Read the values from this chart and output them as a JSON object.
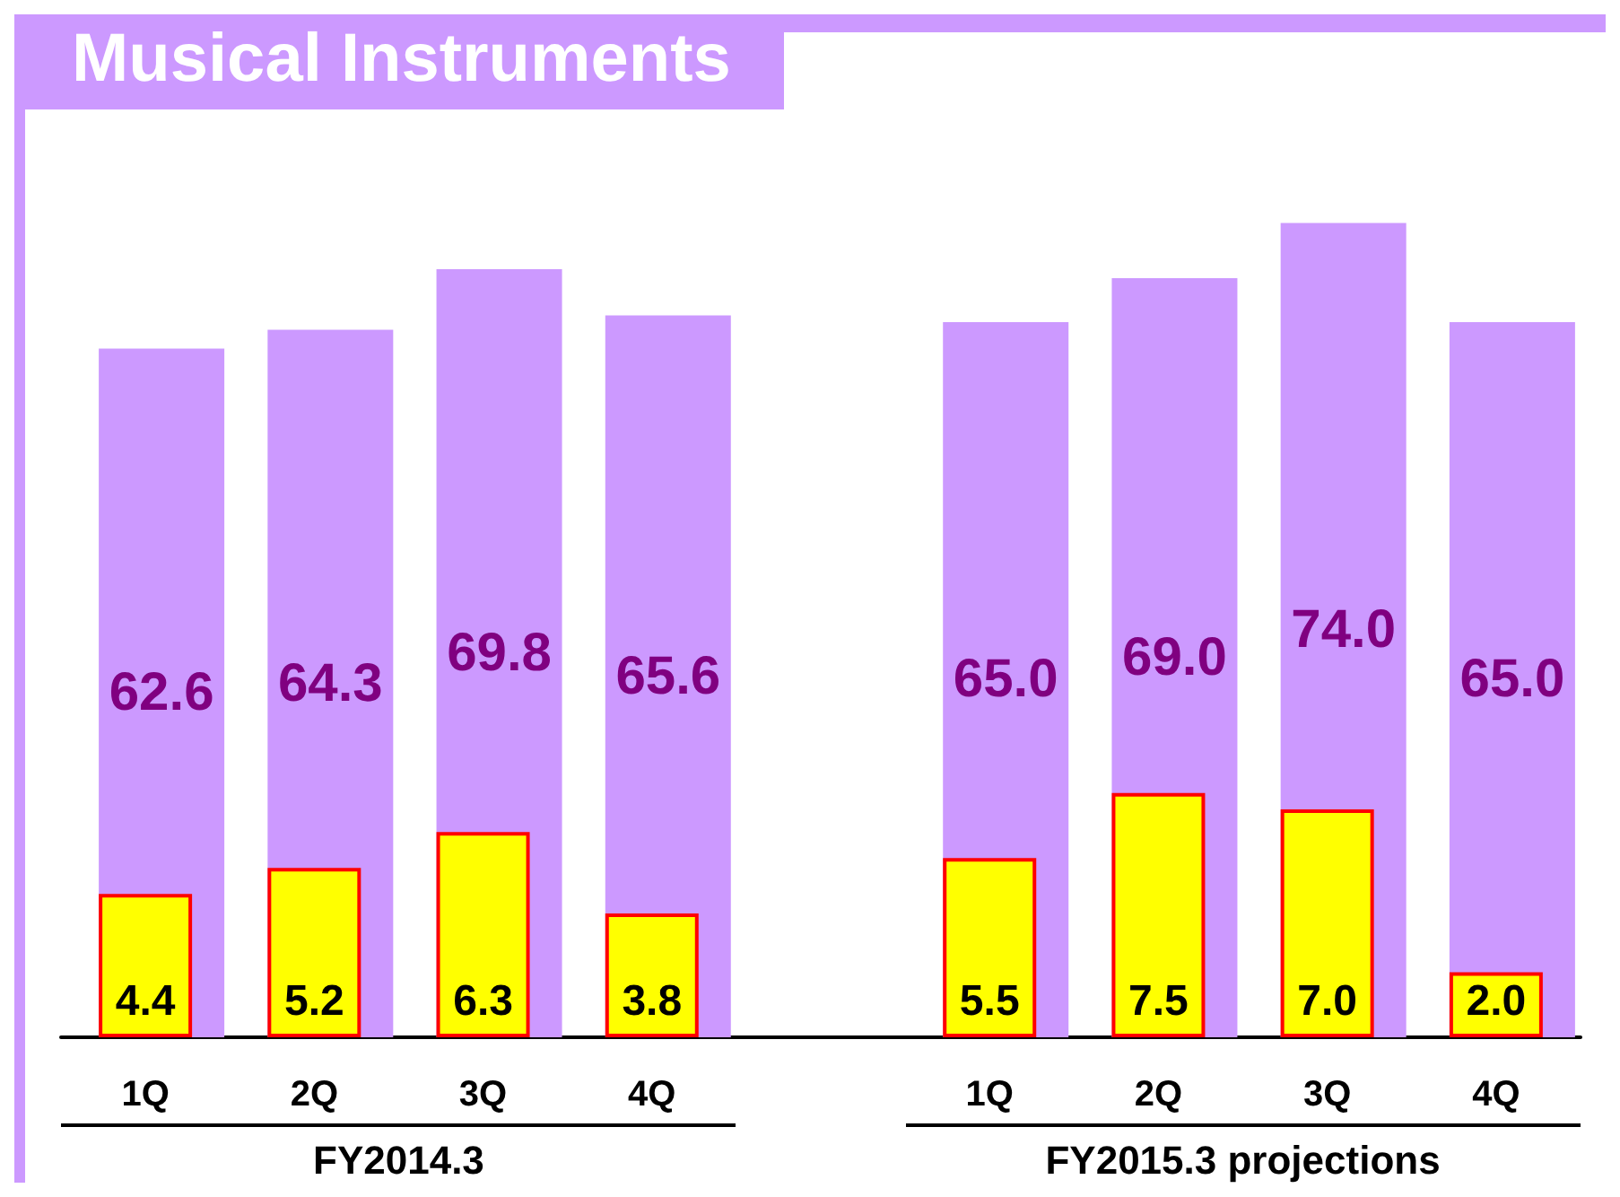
{
  "chart_data": {
    "type": "bar",
    "title": "Musical Instruments",
    "categories": [
      "1Q",
      "2Q",
      "3Q",
      "4Q",
      null,
      "1Q",
      "2Q",
      "3Q",
      "4Q"
    ],
    "series": [
      {
        "color": "#cc99ff",
        "values": [
          62.6,
          64.3,
          69.8,
          65.6,
          null,
          65.0,
          69.0,
          74.0,
          65.0
        ],
        "value_labels": [
          "62.6",
          "64.3",
          "69.8",
          "65.6",
          null,
          "65.0",
          "69.0",
          "74.0",
          "65.0"
        ]
      },
      {
        "color": "#ffff00",
        "axis": "y2",
        "values": [
          4.4,
          5.2,
          6.3,
          3.8,
          null,
          5.5,
          7.5,
          7.0,
          2.0
        ],
        "value_labels": [
          "4.4",
          "5.2",
          "6.3",
          "3.8",
          null,
          "5.5",
          "7.5",
          "7.0",
          "2.0"
        ]
      }
    ],
    "grid": false,
    "annotations": [
      "FY2014.3",
      "FY2015.3 projections"
    ]
  }
}
